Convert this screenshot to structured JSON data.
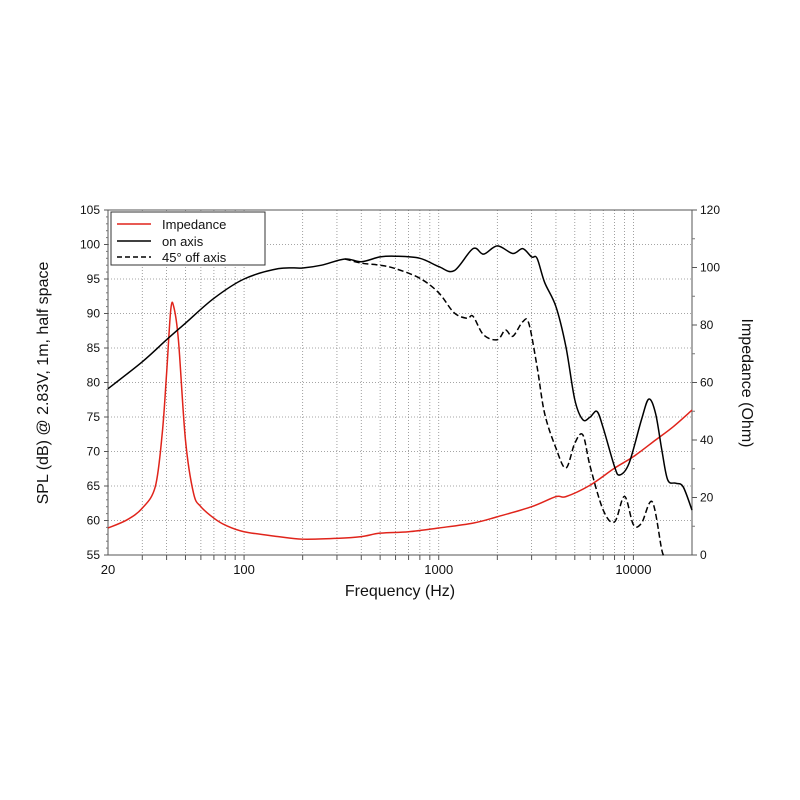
{
  "chart_data": {
    "type": "line",
    "xlabel": "Frequency (Hz)",
    "ylabel": "SPL (dB) @ 2.83V, 1m, half space",
    "y2label": "Impedance (Ohm)",
    "x_scale": "log",
    "xlim": [
      20,
      20000
    ],
    "ylim": [
      55,
      105
    ],
    "y2lim": [
      0,
      120
    ],
    "x_ticks": [
      20,
      100,
      1000,
      10000
    ],
    "y_ticks": [
      55,
      60,
      65,
      70,
      75,
      80,
      85,
      90,
      95,
      100,
      105
    ],
    "y2_ticks": [
      0,
      20,
      40,
      60,
      80,
      100,
      120
    ],
    "grid": true,
    "legend_position": "top-left",
    "series": [
      {
        "name": "Impedance",
        "axis": "right",
        "color": "#e0241b",
        "style": "solid",
        "x": [
          20,
          25,
          30,
          35,
          38,
          40,
          42,
          43.5,
          46,
          50,
          55,
          60,
          70,
          80,
          100,
          150,
          200,
          300,
          400,
          500,
          700,
          1000,
          1500,
          2000,
          3000,
          4000,
          4500,
          6000,
          8000,
          10000,
          13000,
          16000,
          20000
        ],
        "y": [
          9.4,
          12.2,
          16.3,
          23.8,
          42.4,
          63.2,
          85.2,
          86.4,
          74.8,
          40,
          21.5,
          16.8,
          12.8,
          10.4,
          8.1,
          6.4,
          5.5,
          5.8,
          6.4,
          7.6,
          8.1,
          9.4,
          11.1,
          13.3,
          16.8,
          20.3,
          20.3,
          24.3,
          30.2,
          34.2,
          40,
          44.6,
          50.4
        ]
      },
      {
        "name": "on axis",
        "axis": "left",
        "color": "#000000",
        "style": "solid",
        "x": [
          20,
          30,
          40,
          50,
          70,
          100,
          150,
          200,
          250,
          330,
          400,
          500,
          600,
          800,
          1000,
          1200,
          1500,
          1700,
          2000,
          2400,
          2700,
          3000,
          3200,
          3500,
          4000,
          4500,
          5000,
          5500,
          6000,
          6500,
          7000,
          8000,
          8500,
          9500,
          11000,
          12000,
          13000,
          14000,
          15000,
          16500,
          18000,
          20000
        ],
        "y": [
          79.1,
          83.0,
          86.2,
          88.6,
          92.2,
          95.0,
          96.5,
          96.6,
          97.0,
          97.9,
          97.5,
          98.2,
          98.3,
          98.0,
          96.8,
          96.2,
          99.4,
          98.6,
          99.8,
          98.7,
          99.4,
          98.2,
          98.0,
          94.5,
          91.0,
          85.2,
          77.5,
          74.6,
          75.0,
          75.8,
          73.4,
          67.8,
          66.6,
          68.3,
          74.6,
          77.6,
          75.5,
          70.2,
          65.9,
          65.4,
          64.9,
          61.5
        ]
      },
      {
        "name": "45° off axis",
        "axis": "left",
        "color": "#000000",
        "style": "dashed",
        "x": [
          330,
          400,
          500,
          600,
          800,
          1000,
          1200,
          1400,
          1500,
          1700,
          2000,
          2200,
          2400,
          2700,
          2900,
          3200,
          3500,
          4000,
          4500,
          5000,
          5500,
          6000,
          7000,
          8000,
          9000,
          10000,
          11000,
          12500,
          14000,
          14500
        ],
        "y": [
          97.9,
          97.3,
          97.0,
          96.5,
          95.1,
          93.0,
          90.1,
          89.3,
          89.6,
          86.9,
          86.2,
          87.6,
          86.7,
          88.8,
          88.6,
          82.3,
          75.5,
          70.5,
          67.6,
          71.2,
          72.4,
          67.8,
          61.5,
          59.8,
          63.5,
          59.4,
          59.6,
          62.7,
          55.7,
          55
        ]
      }
    ]
  }
}
